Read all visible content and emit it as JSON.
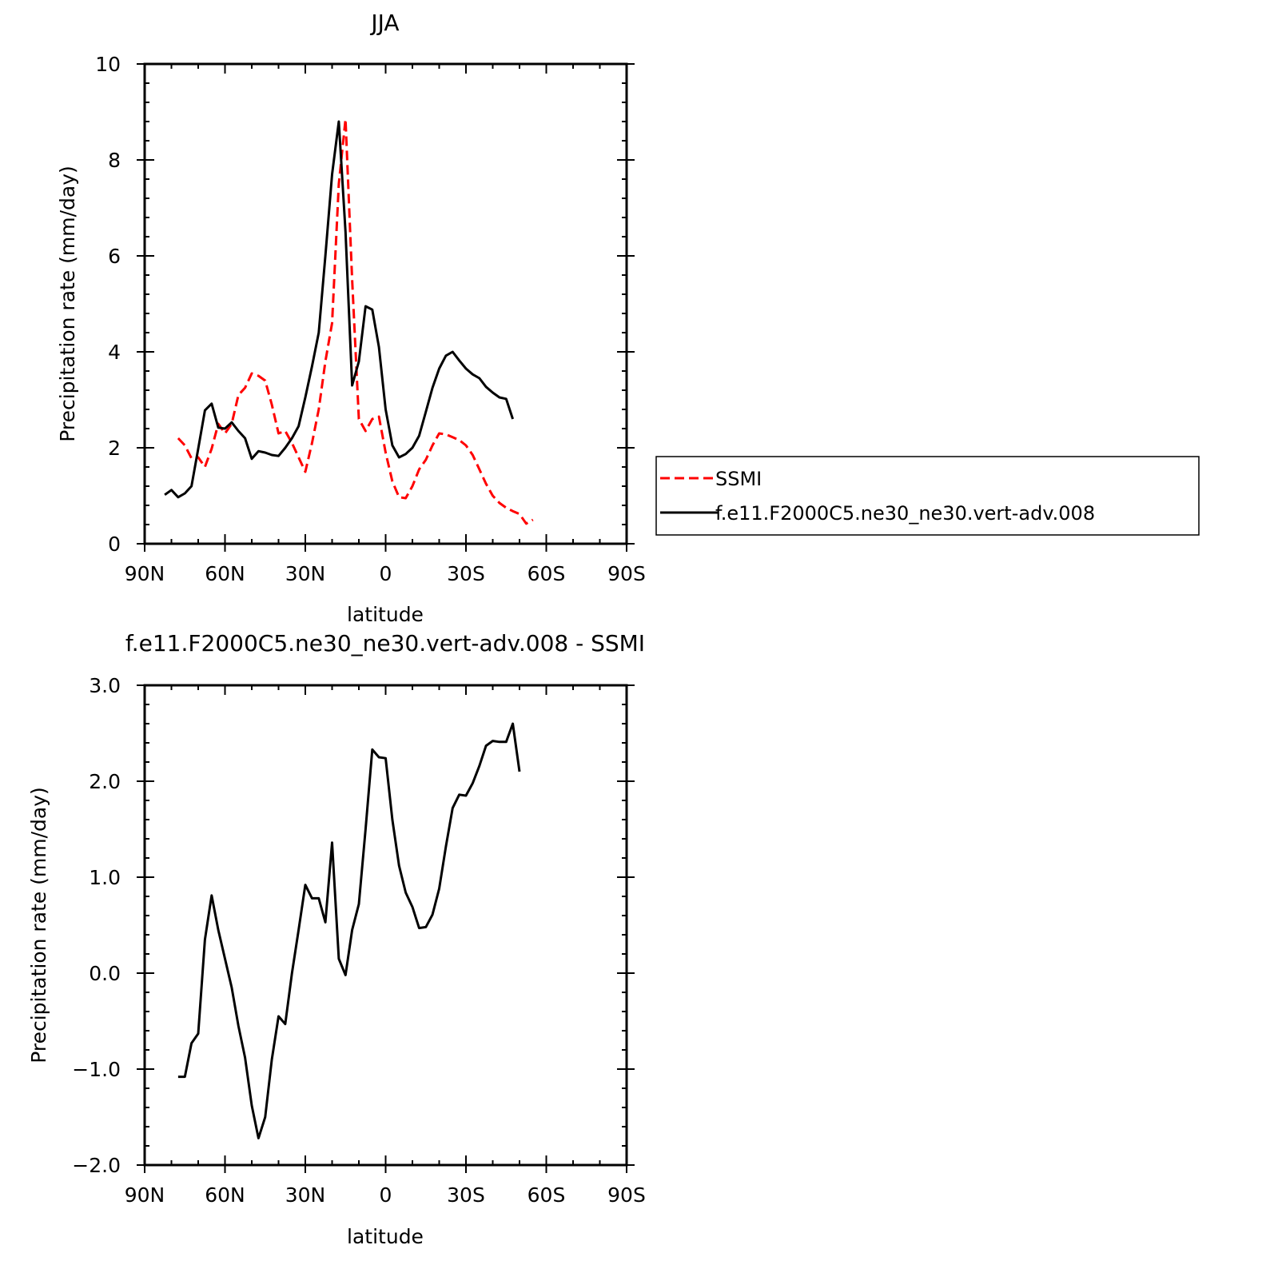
{
  "figure": {
    "background": "#ffffff"
  },
  "chart_data": [
    {
      "type": "line",
      "title": "JJA",
      "xlabel": "latitude",
      "ylabel": "Precipitation rate (mm/day)",
      "xlim": [
        90,
        -90
      ],
      "ylim": [
        0,
        10
      ],
      "xticks": [
        90,
        60,
        30,
        0,
        -30,
        -60,
        -90
      ],
      "xtick_labels": [
        "90N",
        "60N",
        "30N",
        "0",
        "30S",
        "60S",
        "90S"
      ],
      "yticks": [
        0,
        2,
        4,
        6,
        8,
        10
      ],
      "ytick_labels": [
        "0",
        "2",
        "4",
        "6",
        "8",
        "10"
      ],
      "grid": false,
      "legend": {
        "placement": "right, outside plot"
      },
      "series": [
        {
          "name": "SSMI",
          "color": "#ff0000",
          "dash": "dashed",
          "x": [
            77.5,
            75,
            72.5,
            70,
            67.5,
            65,
            62.5,
            60,
            57.5,
            55,
            52.5,
            50,
            47.5,
            45,
            42.5,
            40,
            37.5,
            35,
            32.5,
            30,
            27.5,
            25,
            22.5,
            20,
            17.5,
            15,
            12.5,
            10,
            7.5,
            5,
            2.5,
            0,
            -2.5,
            -5,
            -7.5,
            -10,
            -12.5,
            -15,
            -17.5,
            -20,
            -22.5,
            -25,
            -27.5,
            -30,
            -32.5,
            -35,
            -37.5,
            -40,
            -42.5,
            -45,
            -47.5,
            -50,
            -52.5,
            -55,
            -57.5,
            -60,
            -62.5,
            -65,
            -67.5
          ],
          "y": [
            2.2,
            2.05,
            1.78,
            1.8,
            1.6,
            1.98,
            2.5,
            2.3,
            2.5,
            3.1,
            3.25,
            3.55,
            3.5,
            3.4,
            2.9,
            2.3,
            2.35,
            2.1,
            1.8,
            1.5,
            2.1,
            2.8,
            3.8,
            4.6,
            7.5,
            8.85,
            5.5,
            2.6,
            2.35,
            2.6,
            2.65,
            1.9,
            1.3,
            0.97,
            0.95,
            1.2,
            1.55,
            1.75,
            2.05,
            2.3,
            2.28,
            2.22,
            2.16,
            2.05,
            1.85,
            1.55,
            1.25,
            1.0,
            0.85,
            0.75,
            0.68,
            0.62,
            0.42,
            0.5,
            null,
            null,
            null,
            null,
            null
          ]
        },
        {
          "name": "f.e11.F2000C5.ne30_ne30.vert-adv.008",
          "color": "#000000",
          "dash": "solid",
          "x": [
            82.5,
            80,
            77.5,
            75,
            72.5,
            70,
            67.5,
            65,
            62.5,
            60,
            57.5,
            55,
            52.5,
            50,
            47.5,
            45,
            42.5,
            40,
            37.5,
            35,
            32.5,
            30,
            27.5,
            25,
            22.5,
            20,
            17.5,
            15,
            12.5,
            10,
            7.5,
            5,
            2.5,
            0,
            -2.5,
            -5,
            -7.5,
            -10,
            -12.5,
            -15,
            -17.5,
            -20,
            -22.5,
            -25,
            -27.5,
            -30,
            -32.5,
            -35,
            -37.5,
            -40,
            -42.5,
            -45,
            -47.5,
            -50,
            -52.5,
            -55,
            -57.5,
            -60,
            -62.5,
            -65,
            -67.5
          ],
          "y": [
            1.02,
            1.12,
            0.97,
            1.05,
            1.2,
            1.98,
            2.78,
            2.92,
            2.42,
            2.4,
            2.53,
            2.35,
            2.2,
            1.77,
            1.93,
            1.9,
            1.85,
            1.83,
            2.0,
            2.2,
            2.45,
            3.05,
            3.7,
            4.4,
            6.0,
            7.7,
            8.8,
            6.5,
            3.3,
            3.8,
            4.95,
            4.88,
            4.1,
            2.8,
            2.05,
            1.8,
            1.87,
            2.0,
            2.25,
            2.75,
            3.25,
            3.65,
            3.92,
            4.0,
            3.82,
            3.65,
            3.53,
            3.45,
            3.27,
            3.15,
            3.05,
            3.02,
            2.6,
            null,
            null,
            null,
            null,
            null,
            null,
            null,
            null
          ]
        }
      ]
    },
    {
      "type": "line",
      "title": "f.e11.F2000C5.ne30_ne30.vert-adv.008 - SSMI",
      "xlabel": "latitude",
      "ylabel": "Precipitation rate (mm/day)",
      "xlim": [
        90,
        -90
      ],
      "ylim": [
        -2.0,
        3.0
      ],
      "xticks": [
        90,
        60,
        30,
        0,
        -30,
        -60,
        -90
      ],
      "xtick_labels": [
        "90N",
        "60N",
        "30N",
        "0",
        "30S",
        "60S",
        "90S"
      ],
      "yticks": [
        -2.0,
        -1.0,
        0.0,
        1.0,
        2.0,
        3.0
      ],
      "ytick_labels": [
        "−2.0",
        "−1.0",
        "0.0",
        "1.0",
        "2.0",
        "3.0"
      ],
      "grid": false,
      "series": [
        {
          "color": "#000000",
          "dash": "solid",
          "x": [
            77.5,
            75,
            72.5,
            70,
            67.5,
            65,
            62.5,
            60,
            57.5,
            55,
            52.5,
            50,
            47.5,
            45,
            42.5,
            40,
            37.5,
            35,
            32.5,
            30,
            27.5,
            25,
            22.5,
            20,
            17.5,
            15,
            12.5,
            10,
            7.5,
            5,
            2.5,
            0,
            -2.5,
            -5,
            -7.5,
            -10,
            -12.5,
            -15,
            -17.5,
            -20,
            -22.5,
            -25,
            -27.5,
            -30,
            -32.5,
            -35,
            -37.5,
            -40,
            -42.5,
            -45,
            -47.5,
            -50,
            -52.5,
            -55,
            -57.5,
            -60,
            -62.5,
            -65,
            -67.5
          ],
          "y": [
            -1.08,
            -1.08,
            -0.73,
            -0.63,
            0.35,
            0.81,
            0.45,
            0.15,
            -0.15,
            -0.55,
            -0.88,
            -1.38,
            -1.72,
            -1.5,
            -0.9,
            -0.45,
            -0.53,
            0.0,
            0.45,
            0.92,
            0.78,
            0.78,
            0.53,
            1.36,
            0.15,
            -0.02,
            0.45,
            0.72,
            1.5,
            2.33,
            2.25,
            2.24,
            1.6,
            1.12,
            0.84,
            0.69,
            0.47,
            0.48,
            0.61,
            0.88,
            1.32,
            1.72,
            1.86,
            1.85,
            1.98,
            2.16,
            2.37,
            2.42,
            2.41,
            2.41,
            2.6,
            2.1,
            null,
            null,
            null,
            null,
            null,
            null,
            null
          ]
        }
      ]
    }
  ]
}
